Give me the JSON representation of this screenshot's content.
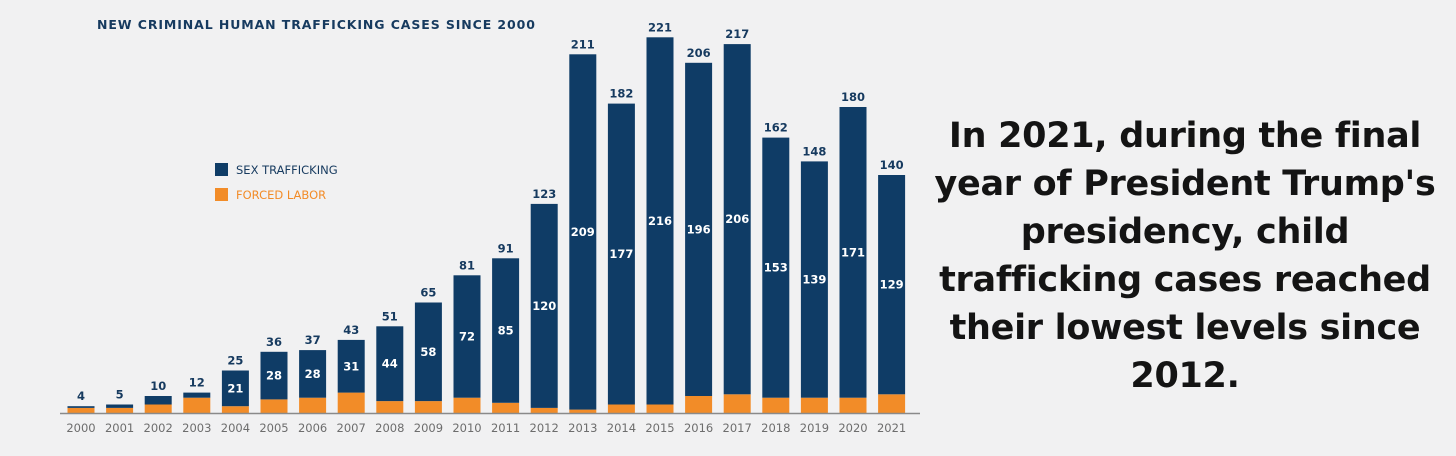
{
  "chart_data": {
    "type": "bar",
    "title": "NEW CRIMINAL HUMAN TRAFFICKING CASES SINCE 2000",
    "categories": [
      "2000",
      "2001",
      "2002",
      "2003",
      "2004",
      "2005",
      "2006",
      "2007",
      "2008",
      "2009",
      "2010",
      "2011",
      "2012",
      "2013",
      "2014",
      "2015",
      "2016",
      "2017",
      "2018",
      "2019",
      "2020",
      "2021"
    ],
    "series": [
      {
        "name": "SEX TRAFFICKING",
        "color": "#0f3c66",
        "values": [
          1,
          2,
          5,
          3,
          21,
          28,
          28,
          31,
          44,
          58,
          72,
          85,
          120,
          209,
          177,
          216,
          196,
          206,
          153,
          139,
          171,
          129
        ]
      },
      {
        "name": "FORCED LABOR",
        "color": "#f28c28",
        "values": [
          3,
          3,
          5,
          9,
          4,
          8,
          9,
          12,
          7,
          7,
          9,
          6,
          3,
          2,
          5,
          5,
          10,
          11,
          9,
          9,
          9,
          11
        ]
      }
    ],
    "totals": [
      4,
      5,
      10,
      12,
      25,
      36,
      37,
      43,
      51,
      65,
      81,
      91,
      123,
      211,
      182,
      221,
      206,
      217,
      162,
      148,
      180,
      140
    ],
    "segment_labels": [
      "",
      "",
      "",
      "",
      "21",
      "28",
      "28",
      "31",
      "44",
      "58",
      "72",
      "85",
      "120",
      "209",
      "177",
      "216",
      "196",
      "206",
      "153",
      "139",
      "171",
      "129"
    ],
    "ylim": [
      0,
      230
    ],
    "xlabel": "",
    "ylabel": "",
    "grid": false,
    "legend": [
      "SEX TRAFFICKING",
      "FORCED LABOR"
    ]
  },
  "caption": "In 2021, during the final year of President Trump's presidency, child trafficking cases reached their lowest levels since 2012."
}
